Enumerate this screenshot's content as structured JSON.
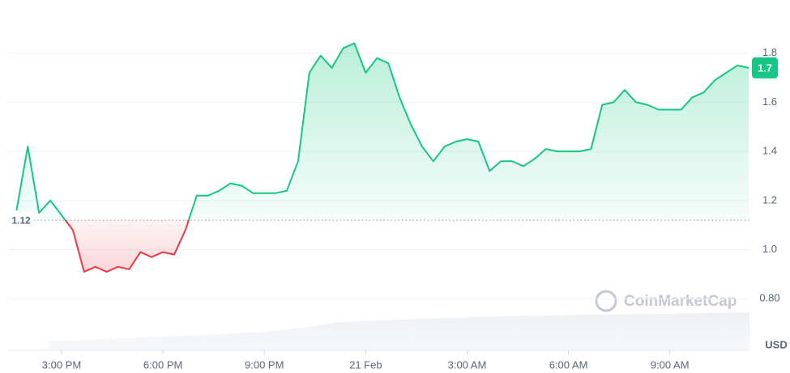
{
  "chart_data": {
    "type": "line",
    "categories": [
      null,
      null,
      null,
      null,
      "3:00 PM",
      null,
      null,
      null,
      null,
      null,
      null,
      null,
      null,
      "6:00 PM",
      null,
      null,
      null,
      null,
      null,
      null,
      null,
      null,
      "9:00 PM",
      null,
      null,
      null,
      null,
      null,
      null,
      null,
      null,
      "21 Feb",
      null,
      null,
      null,
      null,
      null,
      null,
      null,
      null,
      "3:00 AM",
      null,
      null,
      null,
      null,
      null,
      null,
      null,
      null,
      "6:00 AM",
      null,
      null,
      null,
      null,
      null,
      null,
      null,
      null,
      "9:00 AM",
      null,
      null,
      null,
      null,
      null,
      null,
      null
    ],
    "values": [
      1.16,
      1.42,
      1.15,
      1.2,
      1.14,
      1.08,
      0.91,
      0.93,
      0.91,
      0.93,
      0.92,
      0.99,
      0.97,
      0.99,
      0.98,
      1.08,
      1.22,
      1.22,
      1.24,
      1.27,
      1.26,
      1.23,
      1.23,
      1.23,
      1.24,
      1.36,
      1.72,
      1.79,
      1.74,
      1.82,
      1.84,
      1.72,
      1.78,
      1.76,
      1.62,
      1.51,
      1.42,
      1.36,
      1.42,
      1.44,
      1.45,
      1.44,
      1.32,
      1.36,
      1.36,
      1.34,
      1.37,
      1.41,
      1.4,
      1.4,
      1.4,
      1.41,
      1.59,
      1.6,
      1.65,
      1.6,
      1.59,
      1.57,
      1.57,
      1.57,
      1.62,
      1.64,
      1.69,
      1.72,
      1.75,
      1.74
    ],
    "color": "#16c784",
    "negative_color": "#ea3943",
    "baseline": 1.12,
    "current_price": {
      "value": 1.74,
      "label": "1.7"
    },
    "ylim": [
      0.59,
      2.0
    ],
    "yticks": [
      {
        "value": 0.8,
        "label": "0.80"
      },
      {
        "value": 1.0,
        "label": "1.0"
      },
      1.2,
      1.4,
      1.6,
      1.8
    ],
    "grid": true,
    "y_unit": "USD",
    "watermark": "CoinMarketCap"
  }
}
